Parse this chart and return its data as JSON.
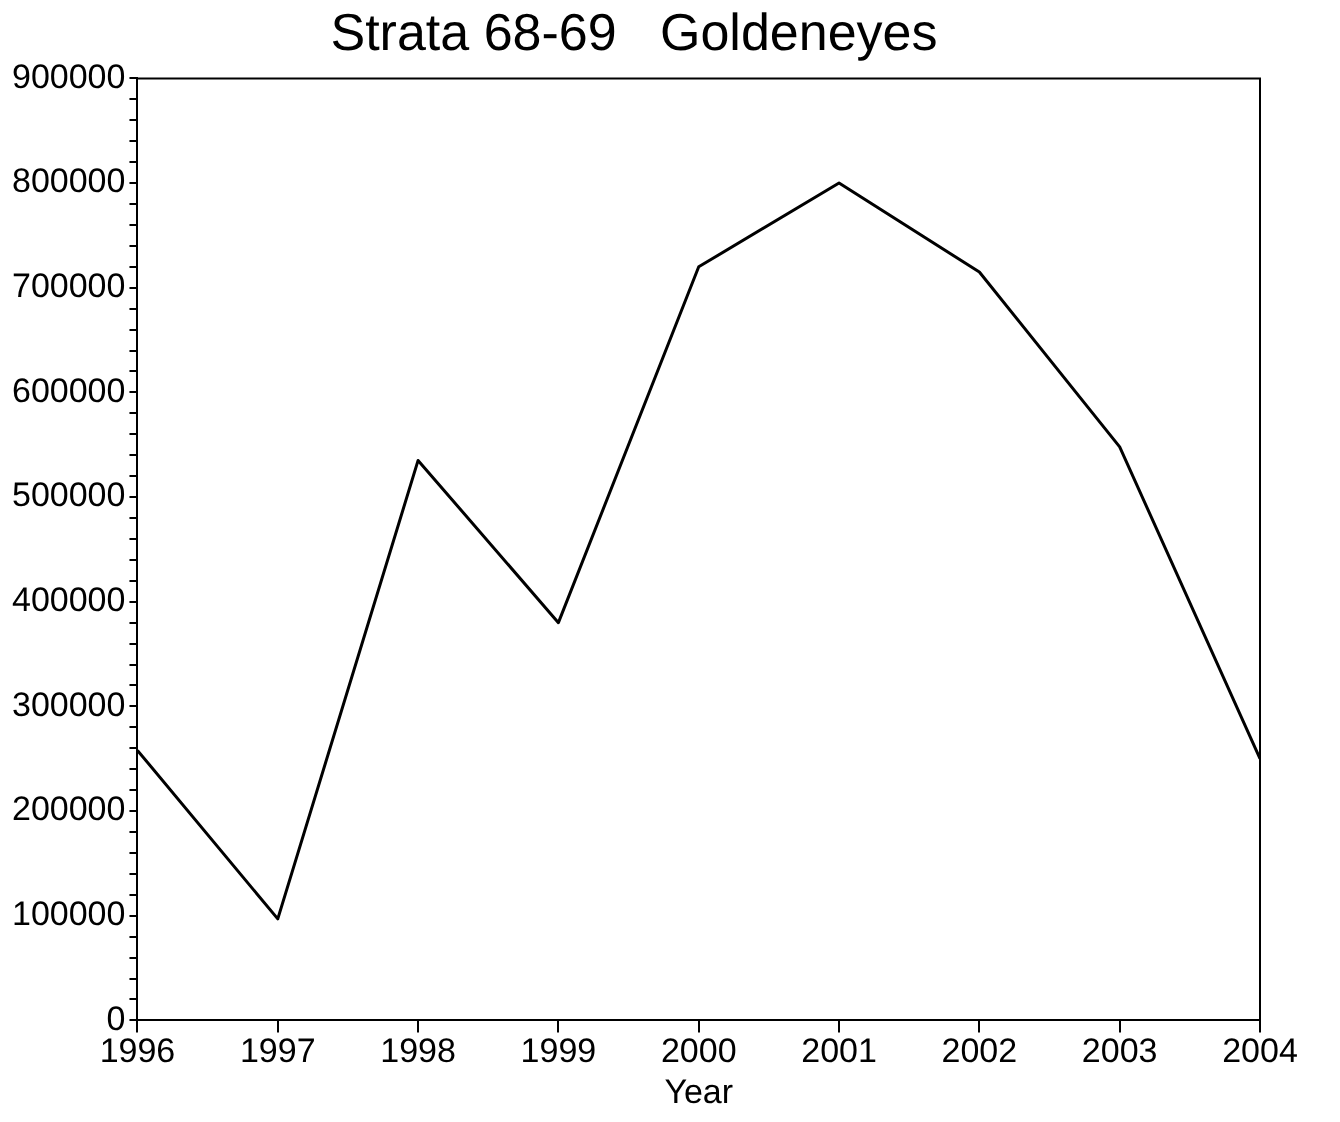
{
  "chart_data": {
    "type": "line",
    "title": "Strata 68-69   Goldeneyes",
    "xlabel": "Year",
    "x": [
      1996,
      1997,
      1998,
      1999,
      2000,
      2001,
      2002,
      2003,
      2004
    ],
    "series": [
      {
        "color": "#000000",
        "values": [
          258000,
          97000,
          535000,
          380000,
          720000,
          800000,
          715000,
          548000,
          250000
        ]
      }
    ],
    "xlim": [
      1996,
      2004
    ],
    "xticks": [
      1996,
      1997,
      1998,
      1999,
      2000,
      2001,
      2002,
      2003,
      2004
    ],
    "ylim": [
      0,
      900000
    ],
    "yticks": [
      0,
      100000,
      200000,
      300000,
      400000,
      500000,
      600000,
      700000,
      800000,
      900000,
      {
        "value": 20000,
        "label": null
      },
      {
        "value": 40000,
        "label": null
      },
      {
        "value": 60000,
        "label": null
      },
      {
        "value": 80000,
        "label": null
      },
      {
        "value": 120000,
        "label": null
      },
      {
        "value": 140000,
        "label": null
      },
      {
        "value": 160000,
        "label": null
      },
      {
        "value": 180000,
        "label": null
      },
      {
        "value": 220000,
        "label": null
      },
      {
        "value": 240000,
        "label": null
      },
      {
        "value": 260000,
        "label": null
      },
      {
        "value": 280000,
        "label": null
      },
      {
        "value": 320000,
        "label": null
      },
      {
        "value": 340000,
        "label": null
      },
      {
        "value": 360000,
        "label": null
      },
      {
        "value": 380000,
        "label": null
      },
      {
        "value": 420000,
        "label": null
      },
      {
        "value": 440000,
        "label": null
      },
      {
        "value": 460000,
        "label": null
      },
      {
        "value": 480000,
        "label": null
      },
      {
        "value": 520000,
        "label": null
      },
      {
        "value": 540000,
        "label": null
      },
      {
        "value": 560000,
        "label": null
      },
      {
        "value": 580000,
        "label": null
      },
      {
        "value": 620000,
        "label": null
      },
      {
        "value": 640000,
        "label": null
      },
      {
        "value": 660000,
        "label": null
      },
      {
        "value": 680000,
        "label": null
      },
      {
        "value": 720000,
        "label": null
      },
      {
        "value": 740000,
        "label": null
      },
      {
        "value": 760000,
        "label": null
      },
      {
        "value": 780000,
        "label": null
      },
      {
        "value": 820000,
        "label": null
      },
      {
        "value": 840000,
        "label": null
      },
      {
        "value": 860000,
        "label": null
      },
      {
        "value": 880000,
        "label": null
      }
    ],
    "grid": false,
    "legend": false,
    "marker": "none",
    "line_style": "solid"
  }
}
